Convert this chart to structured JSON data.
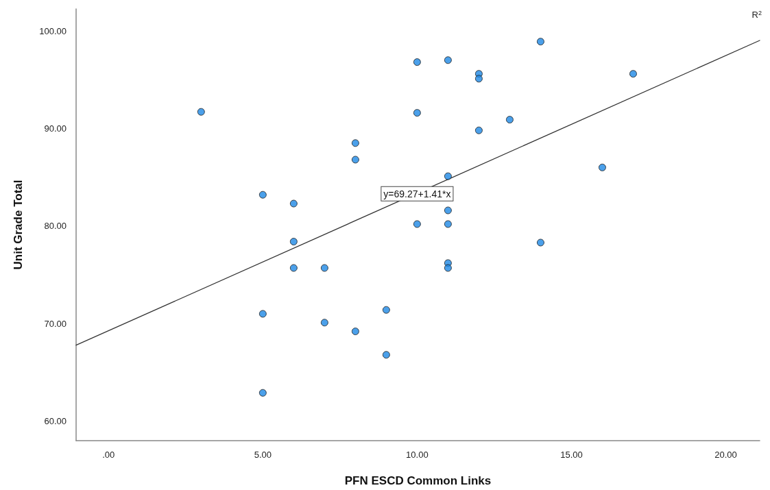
{
  "chart_data": {
    "type": "scatter",
    "xlabel": "PFN ESCD Common Links",
    "ylabel": "Unit Grade Total",
    "xlim": [
      -1.05,
      21.1
    ],
    "ylim": [
      58,
      102.25
    ],
    "xticks": [
      {
        "value": 0,
        "label": ".00"
      },
      {
        "value": 5,
        "label": "5.00"
      },
      {
        "value": 10,
        "label": "10.00"
      },
      {
        "value": 15,
        "label": "15.00"
      },
      {
        "value": 20,
        "label": "20.00"
      }
    ],
    "yticks": [
      {
        "value": 60,
        "label": "60.00"
      },
      {
        "value": 70,
        "label": "70.00"
      },
      {
        "value": 80,
        "label": "80.00"
      },
      {
        "value": 90,
        "label": "90.00"
      },
      {
        "value": 100,
        "label": "100.00"
      }
    ],
    "grid": false,
    "marker": "circle",
    "series": [
      {
        "color": "#1e88e5",
        "x": [
          3,
          5,
          5,
          5,
          6,
          6,
          6,
          7,
          7,
          8,
          8,
          8,
          9,
          9,
          10,
          10,
          10,
          11,
          11,
          11,
          11,
          11,
          11,
          12,
          12,
          12,
          13,
          14,
          14,
          16,
          17
        ],
        "values": [
          91.7,
          83.2,
          71.0,
          62.9,
          82.3,
          78.4,
          75.7,
          75.7,
          70.1,
          88.5,
          86.8,
          69.2,
          71.4,
          66.8,
          96.8,
          91.6,
          80.2,
          97.0,
          85.1,
          81.6,
          80.2,
          76.2,
          75.7,
          95.6,
          95.1,
          89.8,
          90.9,
          98.9,
          78.3,
          86.0,
          95.6
        ]
      },
      {
        "type": "line",
        "color": "#333333",
        "marker": "none",
        "line_style": "solid",
        "x": [
          -1.05,
          21.1
        ],
        "values": [
          67.79,
          99.02
        ]
      }
    ],
    "annotations": [
      {
        "text": "y=69.27+1.41*x",
        "x": 10,
        "y": 83.3
      },
      "R$^{2}$"
    ]
  }
}
